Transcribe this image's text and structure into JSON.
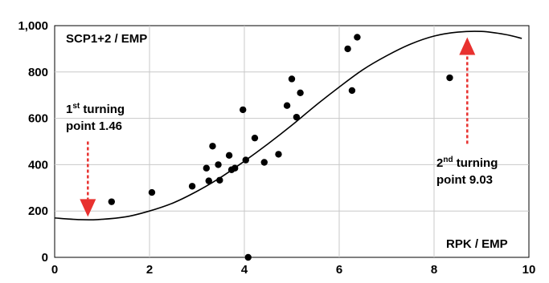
{
  "chart_data": {
    "type": "scatter",
    "xlabel": "RPK / EMP",
    "ylabel": "SCP1+2 / EMP",
    "xlim": [
      0,
      10
    ],
    "ylim": [
      0,
      1000
    ],
    "xticks": [
      "0",
      "2",
      "4",
      "6",
      "8",
      "10"
    ],
    "yticks": [
      "0",
      "200",
      "400",
      "600",
      "800",
      "1,000"
    ],
    "grid": true,
    "points": [
      {
        "x": 1.2,
        "y": 240
      },
      {
        "x": 2.05,
        "y": 280
      },
      {
        "x": 2.9,
        "y": 307
      },
      {
        "x": 3.2,
        "y": 385
      },
      {
        "x": 3.25,
        "y": 330
      },
      {
        "x": 3.33,
        "y": 480
      },
      {
        "x": 3.45,
        "y": 400
      },
      {
        "x": 3.48,
        "y": 333
      },
      {
        "x": 3.68,
        "y": 440
      },
      {
        "x": 3.73,
        "y": 378
      },
      {
        "x": 3.8,
        "y": 385
      },
      {
        "x": 3.97,
        "y": 637
      },
      {
        "x": 4.03,
        "y": 420
      },
      {
        "x": 4.08,
        "y": 0
      },
      {
        "x": 4.22,
        "y": 515
      },
      {
        "x": 4.42,
        "y": 410
      },
      {
        "x": 4.72,
        "y": 445
      },
      {
        "x": 4.9,
        "y": 655
      },
      {
        "x": 5.0,
        "y": 770
      },
      {
        "x": 5.1,
        "y": 605
      },
      {
        "x": 5.18,
        "y": 710
      },
      {
        "x": 6.18,
        "y": 900
      },
      {
        "x": 6.27,
        "y": 720
      },
      {
        "x": 6.38,
        "y": 950
      },
      {
        "x": 8.33,
        "y": 775
      }
    ],
    "trend_curve": [
      {
        "x": 0.0,
        "y": 170
      },
      {
        "x": 0.5,
        "y": 163
      },
      {
        "x": 0.9,
        "y": 163
      },
      {
        "x": 1.5,
        "y": 175
      },
      {
        "x": 2.0,
        "y": 200
      },
      {
        "x": 2.5,
        "y": 235
      },
      {
        "x": 3.0,
        "y": 285
      },
      {
        "x": 3.5,
        "y": 345
      },
      {
        "x": 4.0,
        "y": 415
      },
      {
        "x": 4.5,
        "y": 490
      },
      {
        "x": 5.0,
        "y": 570
      },
      {
        "x": 5.5,
        "y": 655
      },
      {
        "x": 6.0,
        "y": 735
      },
      {
        "x": 6.5,
        "y": 810
      },
      {
        "x": 7.0,
        "y": 870
      },
      {
        "x": 7.5,
        "y": 920
      },
      {
        "x": 8.0,
        "y": 955
      },
      {
        "x": 8.5,
        "y": 972
      },
      {
        "x": 9.0,
        "y": 975
      },
      {
        "x": 9.5,
        "y": 962
      },
      {
        "x": 9.85,
        "y": 945
      }
    ],
    "annotations": [
      {
        "id": "first",
        "sup": "st",
        "line1_num": "1",
        "line1_rest": " turning",
        "line2": "point  1.46",
        "arrow_x": 0.7,
        "arrow_top_y": 500,
        "arrow_tip_y": 175,
        "arrow_direction": "down"
      },
      {
        "id": "second",
        "sup": "nd",
        "line1_num": "2",
        "line1_rest": " turning",
        "line2": "point  9.03",
        "arrow_x": 8.7,
        "arrow_top_y": 950,
        "arrow_tip_y": 490,
        "arrow_direction": "up"
      }
    ],
    "colors": {
      "points": "#000000",
      "curve": "#000000",
      "grid": "#c8c8c8",
      "arrow": "#e8312f"
    }
  }
}
